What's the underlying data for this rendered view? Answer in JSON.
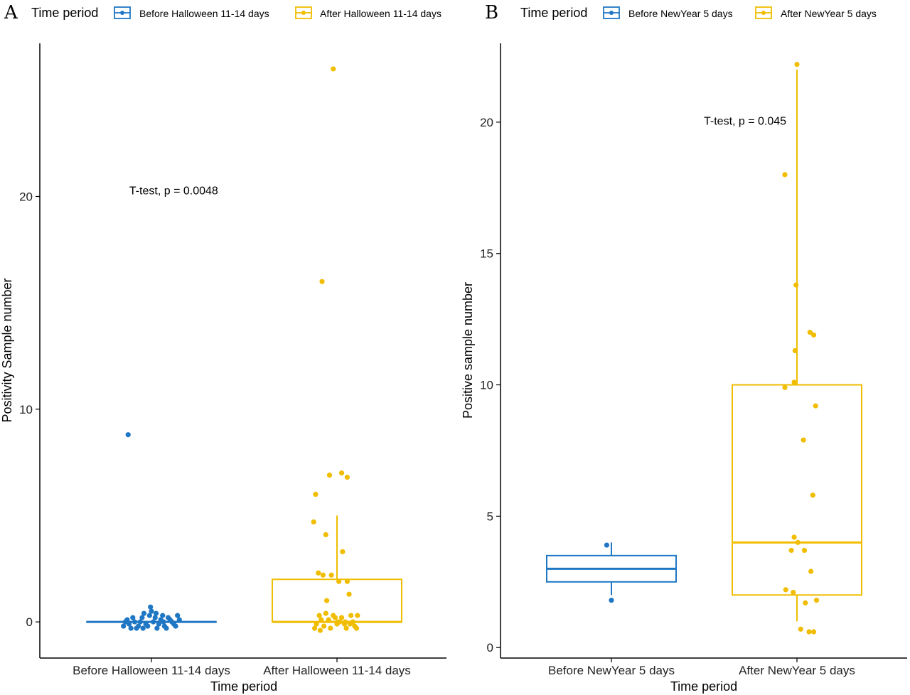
{
  "colors": {
    "before": "#1f77c4",
    "after": "#f0bd00"
  },
  "chart_data": [
    {
      "panel": "A",
      "type": "box",
      "legend": {
        "title": "Time period",
        "entries": [
          "Before Halloween 11-14 days",
          "After Halloween 11-14 days"
        ]
      },
      "xlabel": "Time period",
      "ylabel": "Positivity Sample number",
      "categories": [
        "Before Halloween 11-14 days",
        "After Halloween 11-14 days"
      ],
      "ylim": [
        -1.7,
        27.2
      ],
      "yticks": [
        0,
        10,
        20
      ],
      "annotation": {
        "text": "T-test, p = 0.0048",
        "x": 0.22,
        "y": 20.1
      },
      "boxes": [
        {
          "q1": 0,
          "median": 0,
          "q3": 0,
          "whisker_low": 0,
          "whisker_high": 0
        },
        {
          "q1": 0,
          "median": 0,
          "q3": 2,
          "whisker_low": 0,
          "whisker_high": 5
        }
      ],
      "points": [
        [
          [
            -0.25,
            8.8
          ],
          [
            -0.3,
            -0.2
          ],
          [
            -0.26,
            0.1
          ],
          [
            -0.22,
            -0.3
          ],
          [
            -0.18,
            0.0
          ],
          [
            -0.14,
            -0.2
          ],
          [
            -0.1,
            0.2
          ],
          [
            -0.06,
            -0.1
          ],
          [
            -0.02,
            0.3
          ],
          [
            0.02,
            0.0
          ],
          [
            0.06,
            -0.3
          ],
          [
            0.1,
            0.1
          ],
          [
            0.14,
            -0.2
          ],
          [
            0.18,
            0.2
          ],
          [
            0.22,
            0.0
          ],
          [
            0.26,
            -0.2
          ],
          [
            0.3,
            0.1
          ],
          [
            -0.28,
            0.0
          ],
          [
            -0.24,
            -0.1
          ],
          [
            -0.2,
            0.2
          ],
          [
            -0.16,
            -0.3
          ],
          [
            -0.12,
            0.0
          ],
          [
            -0.08,
            0.4
          ],
          [
            -0.04,
            -0.2
          ],
          [
            0.0,
            0.5
          ],
          [
            0.04,
            0.2
          ],
          [
            0.08,
            -0.1
          ],
          [
            0.12,
            0.3
          ],
          [
            0.16,
            -0.3
          ],
          [
            0.2,
            0.1
          ],
          [
            0.24,
            -0.1
          ],
          [
            0.28,
            0.3
          ],
          [
            -0.01,
            0.7
          ],
          [
            0.05,
            0.4
          ],
          [
            -0.09,
            -0.3
          ],
          [
            0.13,
            0.0
          ]
        ],
        [
          [
            -0.04,
            26.0
          ],
          [
            -0.16,
            16.0
          ],
          [
            -0.08,
            6.9
          ],
          [
            0.05,
            7.0
          ],
          [
            0.11,
            6.8
          ],
          [
            -0.23,
            6.0
          ],
          [
            -0.25,
            4.7
          ],
          [
            -0.12,
            4.1
          ],
          [
            0.06,
            3.3
          ],
          [
            -0.2,
            2.3
          ],
          [
            -0.15,
            2.2
          ],
          [
            -0.06,
            2.2
          ],
          [
            0.02,
            1.9
          ],
          [
            0.11,
            1.9
          ],
          [
            0.13,
            1.3
          ],
          [
            -0.11,
            1.0
          ],
          [
            -0.24,
            -0.3
          ],
          [
            -0.19,
            0.3
          ],
          [
            -0.14,
            -0.2
          ],
          [
            -0.09,
            0.1
          ],
          [
            -0.02,
            0.2
          ],
          [
            0.03,
            0.0
          ],
          [
            0.08,
            -0.1
          ],
          [
            0.15,
            0.3
          ],
          [
            0.19,
            -0.2
          ],
          [
            0.22,
            0.3
          ],
          [
            -0.22,
            -0.1
          ],
          [
            -0.17,
            0.1
          ],
          [
            -0.12,
            0.4
          ],
          [
            -0.07,
            -0.3
          ],
          [
            0.0,
            -0.1
          ],
          [
            0.05,
            0.2
          ],
          [
            0.1,
            -0.3
          ],
          [
            0.17,
            0.0
          ],
          [
            0.21,
            -0.3
          ],
          [
            -0.18,
            -0.4
          ],
          [
            -0.04,
            0.3
          ],
          [
            0.14,
            -0.1
          ],
          [
            0.01,
            0.0
          ],
          [
            0.09,
            0.0
          ]
        ]
      ]
    },
    {
      "panel": "B",
      "type": "box",
      "legend": {
        "title": "Time period",
        "entries": [
          "Before NewYear 5 days",
          "After NewYear 5 days"
        ]
      },
      "xlabel": "Time period",
      "ylabel": "Positive sample number",
      "categories": [
        "Before NewYear 5 days",
        "After NewYear 5 days"
      ],
      "ylim": [
        -0.4,
        23.0
      ],
      "yticks": [
        0,
        5,
        10,
        15,
        20
      ],
      "annotation": {
        "text": "T-test, p = 0.045",
        "x": 0.5,
        "y": 19.9
      },
      "boxes": [
        {
          "q1": 2.5,
          "median": 3,
          "q3": 3.5,
          "whisker_low": 2,
          "whisker_high": 4
        },
        {
          "q1": 2,
          "median": 4,
          "q3": 10,
          "whisker_low": 1,
          "whisker_high": 22
        }
      ],
      "points": [
        [
          [
            0.0,
            1.8
          ],
          [
            -0.05,
            3.9
          ]
        ],
        [
          [
            0.0,
            22.2
          ],
          [
            -0.13,
            18.0
          ],
          [
            -0.01,
            13.8
          ],
          [
            0.14,
            12.0
          ],
          [
            0.18,
            11.9
          ],
          [
            -0.02,
            11.3
          ],
          [
            -0.03,
            10.1
          ],
          [
            -0.13,
            9.9
          ],
          [
            0.2,
            9.2
          ],
          [
            0.07,
            7.9
          ],
          [
            0.17,
            5.8
          ],
          [
            -0.03,
            4.2
          ],
          [
            0.01,
            4.0
          ],
          [
            -0.06,
            3.7
          ],
          [
            0.08,
            3.7
          ],
          [
            0.15,
            2.9
          ],
          [
            -0.12,
            2.2
          ],
          [
            -0.04,
            2.1
          ],
          [
            0.09,
            1.7
          ],
          [
            0.21,
            1.8
          ],
          [
            0.04,
            0.7
          ],
          [
            0.13,
            0.6
          ],
          [
            0.18,
            0.6
          ]
        ]
      ]
    }
  ]
}
